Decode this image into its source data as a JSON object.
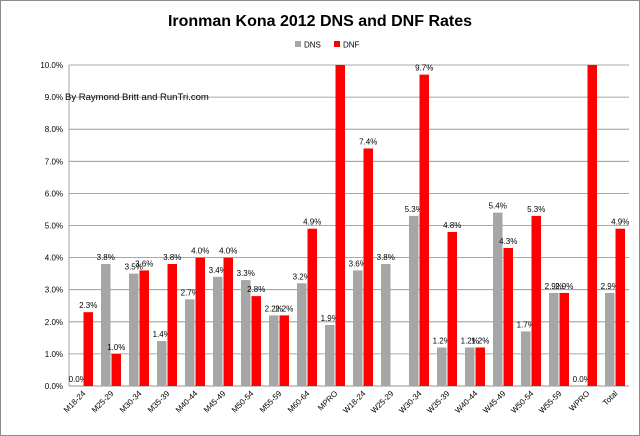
{
  "chart_data": {
    "type": "bar",
    "title": "Ironman Kona 2012 DNS and DNF Rates",
    "annotation": "By Raymond Britt and RunTri.com",
    "categories": [
      "M18-24",
      "M25-29",
      "M30-34",
      "M35-39",
      "M40-44",
      "M45-49",
      "M50-54",
      "M55-59",
      "M60-64",
      "MPRO",
      "W18-24",
      "W25-29",
      "W30-34",
      "W35-39",
      "W40-44",
      "W45-49",
      "W50-54",
      "W55-59",
      "WPRO",
      "Total"
    ],
    "series": [
      {
        "name": "DNS",
        "color": "#a6a6a6",
        "values": [
          0.0,
          3.8,
          3.5,
          1.4,
          2.7,
          3.4,
          3.3,
          2.2,
          3.2,
          1.9,
          3.6,
          3.8,
          5.3,
          1.2,
          1.2,
          5.4,
          1.7,
          2.9,
          0.0,
          2.9
        ],
        "labels": [
          "0.0%",
          "3.8%",
          "3.5%",
          "1.4%",
          "2.7%",
          "3.4%",
          "3.3%",
          "2.2%",
          "3.2%",
          "1.9%",
          "3.6%",
          "3.8%",
          "5.3%",
          "1.2%",
          "1.2%",
          "5.4%",
          "1.7%",
          "2.9%",
          "0.0%",
          "2.9%"
        ]
      },
      {
        "name": "DNF",
        "color": "#ff0000",
        "values": [
          2.3,
          1.0,
          3.6,
          3.8,
          4.0,
          4.0,
          2.8,
          2.2,
          4.9,
          10.0,
          7.4,
          0.0,
          9.7,
          4.8,
          1.2,
          4.3,
          5.3,
          2.9,
          10.0,
          4.9
        ],
        "labels": [
          "2.3%",
          "1.0%",
          "3.6%",
          "3.8%",
          "4.0%",
          "4.0%",
          "2.8%",
          "2.2%",
          "4.9%",
          "",
          "7.4%",
          "",
          "9.7%",
          "4.8%",
          "1.2%",
          "4.3%",
          "5.3%",
          "2.9%",
          "",
          "4.9%"
        ]
      }
    ],
    "ylim": [
      0,
      10
    ],
    "yticks": [
      "0.0%",
      "1.0%",
      "2.0%",
      "3.0%",
      "4.0%",
      "5.0%",
      "6.0%",
      "7.0%",
      "8.0%",
      "9.0%",
      "10.0%"
    ],
    "grid": true,
    "legend_position": "top-center"
  }
}
